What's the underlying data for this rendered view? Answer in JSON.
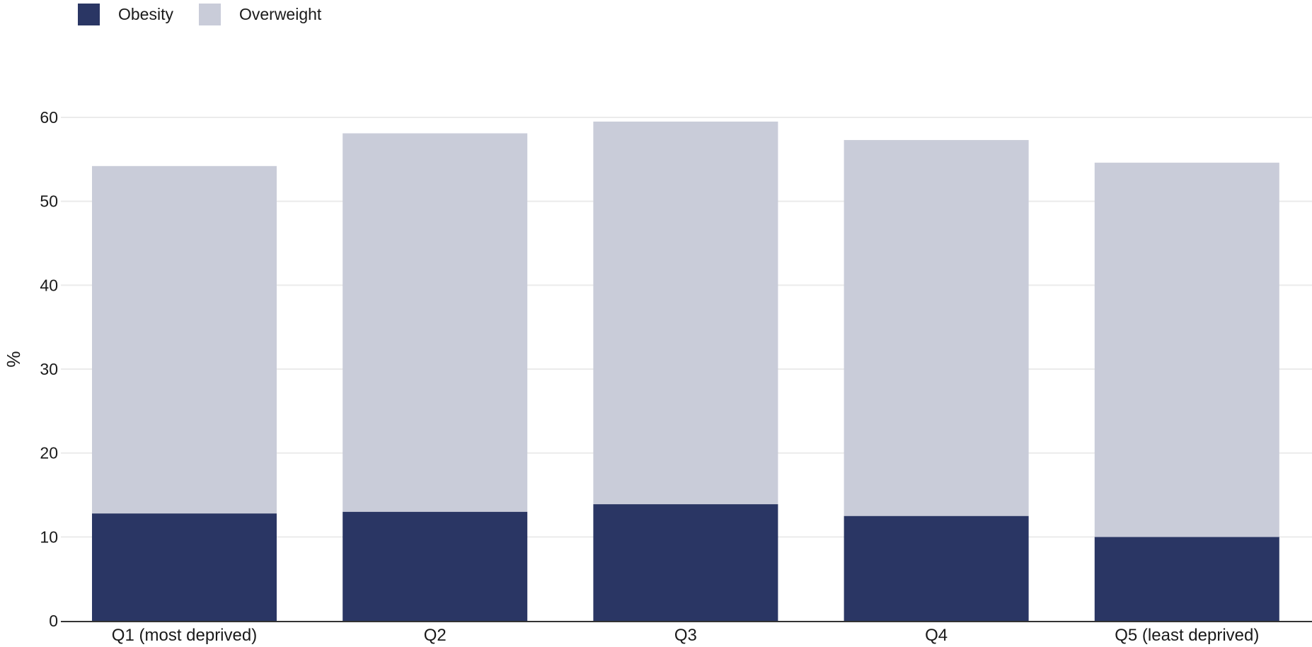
{
  "legend": {
    "items": [
      {
        "label": "Obesity",
        "color": "#2a3664"
      },
      {
        "label": "Overweight",
        "color": "#c9ccd9"
      }
    ],
    "placement": "top-left"
  },
  "chart_data": {
    "type": "bar",
    "stacked": true,
    "categories": [
      "Q1 (most deprived)",
      "Q2",
      "Q3",
      "Q4",
      "Q5 (least deprived)"
    ],
    "series": [
      {
        "name": "Obesity",
        "values": [
          12.8,
          13.0,
          13.9,
          12.5,
          10.0
        ],
        "color": "#2a3664"
      },
      {
        "name": "Overweight",
        "values": [
          41.4,
          45.1,
          45.6,
          44.8,
          44.6
        ],
        "color": "#c9ccd9"
      }
    ],
    "ylabel": "%",
    "xlabel": "",
    "ylim": [
      0,
      60
    ],
    "yticks": [
      0,
      10,
      20,
      30,
      40,
      50,
      60
    ],
    "grid": true
  }
}
